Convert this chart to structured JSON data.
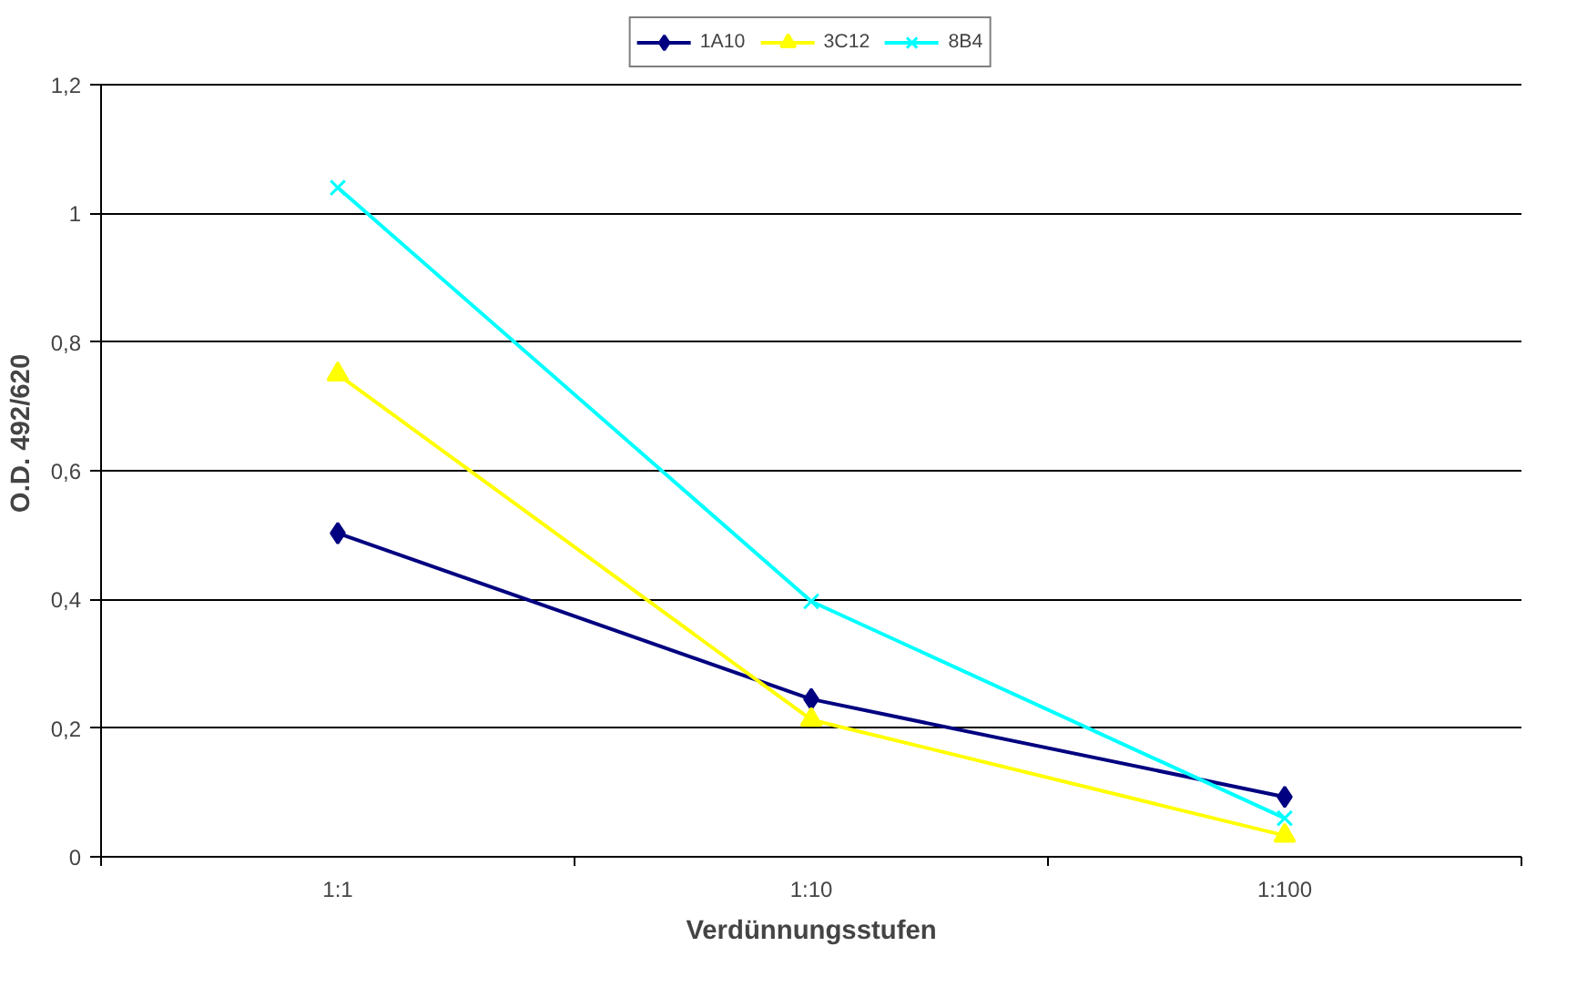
{
  "chart_data": {
    "type": "line",
    "xlabel": "Verdünnungsstufen",
    "ylabel": "O.D. 492/620",
    "categories": [
      "1:1",
      "1:10",
      "1:100"
    ],
    "series": [
      {
        "name": "1A10",
        "color": "#000080",
        "marker": "diamond",
        "values": [
          0.503,
          0.245,
          0.093
        ]
      },
      {
        "name": "3C12",
        "color": "#ffff00",
        "marker": "triangle",
        "values": [
          0.75,
          0.213,
          0.033
        ]
      },
      {
        "name": "8B4",
        "color": "#00ffff",
        "marker": "cross",
        "values": [
          1.04,
          0.397,
          0.06
        ]
      }
    ],
    "ylim": [
      0,
      1.2
    ],
    "yticks": [
      0,
      {
        "value": 0.2,
        "label": "0,2"
      },
      {
        "value": 0.4,
        "label": "0,4"
      },
      {
        "value": 0.6,
        "label": "0,6"
      },
      {
        "value": 0.8,
        "label": "0,8"
      },
      1,
      {
        "value": 1.2,
        "label": "1,2"
      }
    ],
    "grid": "y",
    "legend": "top"
  }
}
